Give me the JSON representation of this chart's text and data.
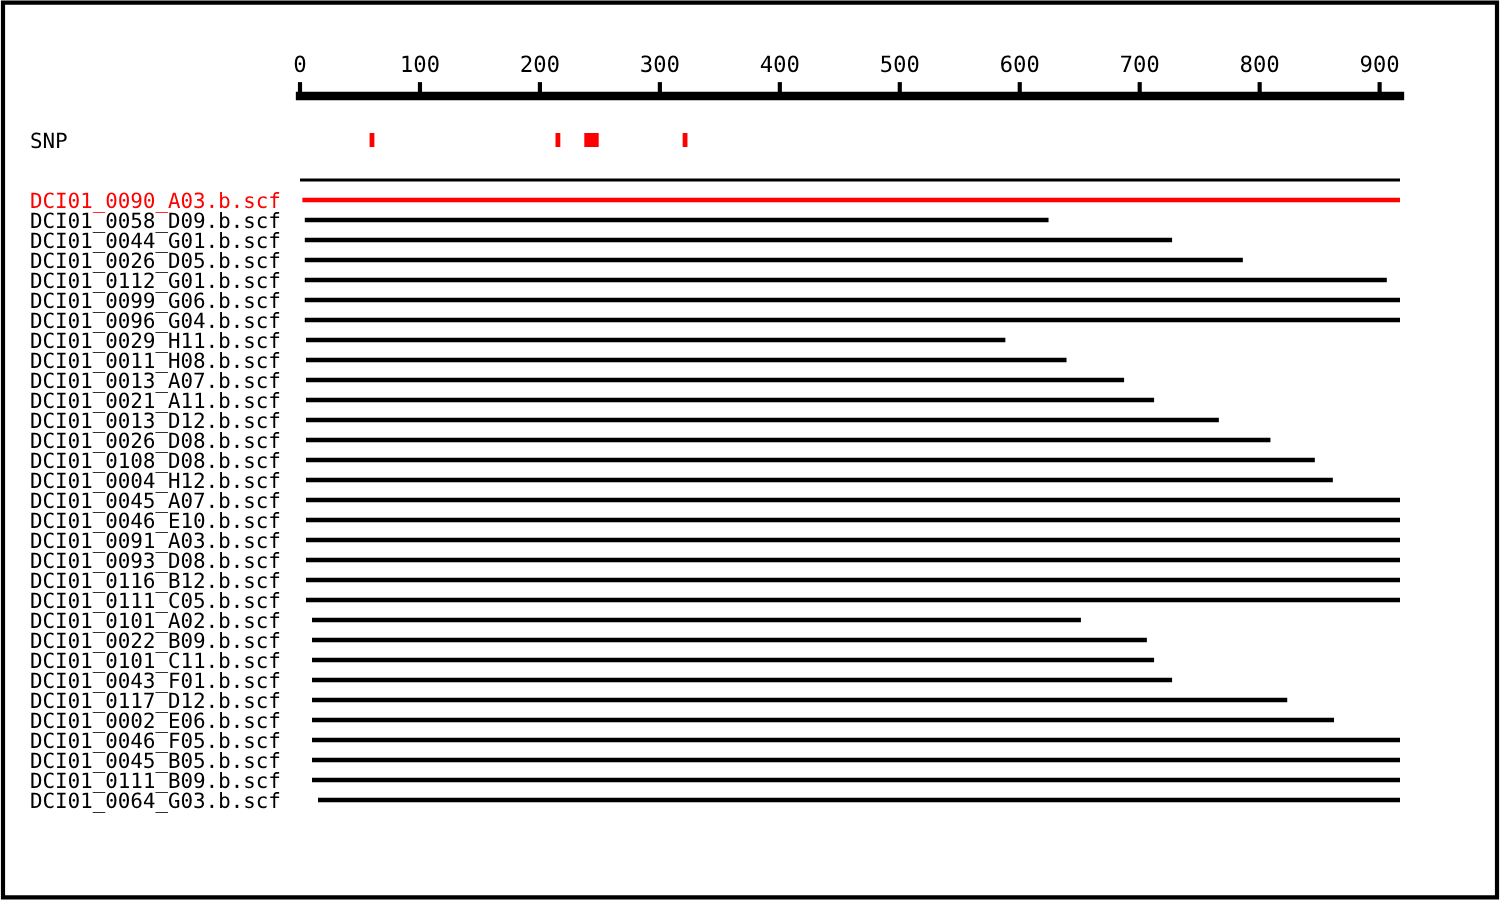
{
  "chart_data": {
    "type": "bar",
    "orientation": "horizontal",
    "xlim": [
      0,
      917
    ],
    "xticks": [
      0,
      100,
      200,
      300,
      400,
      500,
      600,
      700,
      800,
      900
    ],
    "grid": false,
    "legend": false,
    "categories": [
      "SNP",
      null,
      null,
      "DCI01_0090_A03.b.scf",
      "DCI01_0058_D09.b.scf",
      "DCI01_0044_G01.b.scf",
      "DCI01_0026_D05.b.scf",
      "DCI01_0112_G01.b.scf",
      "DCI01_0099_G06.b.scf",
      "DCI01_0096_G04.b.scf",
      "DCI01_0029_H11.b.scf",
      "DCI01_0011_H08.b.scf",
      "DCI01_0013_A07.b.scf",
      "DCI01_0021_A11.b.scf",
      "DCI01_0013_D12.b.scf",
      "DCI01_0026_D08.b.scf",
      "DCI01_0108_D08.b.scf",
      "DCI01_0004_H12.b.scf",
      "DCI01_0045_A07.b.scf",
      "DCI01_0046_E10.b.scf",
      "DCI01_0091_A03.b.scf",
      "DCI01_0093_D08.b.scf",
      "DCI01_0116_B12.b.scf",
      "DCI01_0111_C05.b.scf",
      "DCI01_0101_A02.b.scf",
      "DCI01_0022_B09.b.scf",
      "DCI01_0101_C11.b.scf",
      "DCI01_0043_F01.b.scf",
      "DCI01_0117_D12.b.scf",
      "DCI01_0002_E06.b.scf",
      "DCI01_0046_F05.b.scf",
      "DCI01_0045_B05.b.scf",
      "DCI01_0111_B09.b.scf",
      "DCI01_0064_G03.b.scf"
    ],
    "series": [
      {
        "base": [
          58,
          null,
          null,
          null,
          null,
          null,
          null,
          null,
          null,
          null,
          null,
          null,
          null,
          null,
          null,
          null,
          null,
          null,
          null,
          null,
          null,
          null,
          null,
          null,
          null,
          null,
          null,
          null,
          null,
          null,
          null,
          null,
          null,
          null
        ],
        "values": [
          4,
          null,
          null,
          null,
          null,
          null,
          null,
          null,
          null,
          null,
          null,
          null,
          null,
          null,
          null,
          null,
          null,
          null,
          null,
          null,
          null,
          null,
          null,
          null,
          null,
          null,
          null,
          null,
          null,
          null,
          null,
          null,
          null,
          null
        ],
        "color": "#ff0000"
      },
      {
        "base": [
          213,
          null,
          null,
          null,
          null,
          null,
          null,
          null,
          null,
          null,
          null,
          null,
          null,
          null,
          null,
          null,
          null,
          null,
          null,
          null,
          null,
          null,
          null,
          null,
          null,
          null,
          null,
          null,
          null,
          null,
          null,
          null,
          null,
          null
        ],
        "values": [
          4,
          null,
          null,
          null,
          null,
          null,
          null,
          null,
          null,
          null,
          null,
          null,
          null,
          null,
          null,
          null,
          null,
          null,
          null,
          null,
          null,
          null,
          null,
          null,
          null,
          null,
          null,
          null,
          null,
          null,
          null,
          null,
          null,
          null
        ],
        "color": "#ff0000"
      },
      {
        "base": [
          237,
          null,
          null,
          null,
          null,
          null,
          null,
          null,
          null,
          null,
          null,
          null,
          null,
          null,
          null,
          null,
          null,
          null,
          null,
          null,
          null,
          null,
          null,
          null,
          null,
          null,
          null,
          null,
          null,
          null,
          null,
          null,
          null,
          null
        ],
        "values": [
          12,
          null,
          null,
          null,
          null,
          null,
          null,
          null,
          null,
          null,
          null,
          null,
          null,
          null,
          null,
          null,
          null,
          null,
          null,
          null,
          null,
          null,
          null,
          null,
          null,
          null,
          null,
          null,
          null,
          null,
          null,
          null,
          null,
          null
        ],
        "color": "#ff0000"
      },
      {
        "base": [
          319,
          null,
          null,
          null,
          null,
          null,
          null,
          null,
          null,
          null,
          null,
          null,
          null,
          null,
          null,
          null,
          null,
          null,
          null,
          null,
          null,
          null,
          null,
          null,
          null,
          null,
          null,
          null,
          null,
          null,
          null,
          null,
          null,
          null
        ],
        "values": [
          4,
          null,
          null,
          null,
          null,
          null,
          null,
          null,
          null,
          null,
          null,
          null,
          null,
          null,
          null,
          null,
          null,
          null,
          null,
          null,
          null,
          null,
          null,
          null,
          null,
          null,
          null,
          null,
          null,
          null,
          null,
          null,
          null,
          null
        ],
        "color": "#ff0000"
      },
      {
        "base": [
          null,
          null,
          null,
          2,
          4,
          4,
          4,
          4,
          4,
          4,
          5,
          5,
          5,
          5,
          5,
          5,
          5,
          5,
          5,
          5,
          5,
          5,
          5,
          5,
          10,
          10,
          10,
          10,
          10,
          10,
          10,
          10,
          10,
          15
        ],
        "values": [
          null,
          null,
          null,
          916,
          620,
          723,
          782,
          902,
          916,
          915,
          583,
          634,
          682,
          707,
          761,
          804,
          841,
          856,
          914,
          914,
          913,
          914,
          914,
          914,
          641,
          696,
          702,
          717,
          813,
          852,
          909,
          909,
          909,
          904
        ],
        "colors": [
          null,
          null,
          null,
          "#ff0000",
          "#000000",
          "#000000",
          "#000000",
          "#000000",
          "#000000",
          "#000000",
          "#000000",
          "#000000",
          "#000000",
          "#000000",
          "#000000",
          "#000000",
          "#000000",
          "#000000",
          "#000000",
          "#000000",
          "#000000",
          "#000000",
          "#000000",
          "#000000",
          "#000000",
          "#000000",
          "#000000",
          "#000000",
          "#000000",
          "#000000",
          "#000000",
          "#000000",
          "#000000",
          "#000000"
        ]
      }
    ]
  }
}
